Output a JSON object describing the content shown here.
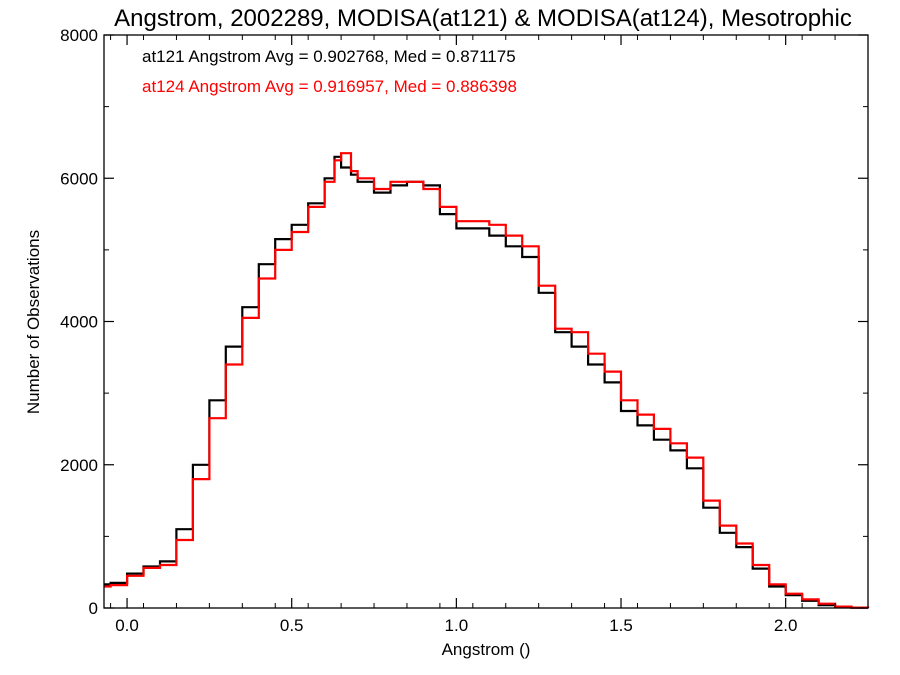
{
  "chart_data": {
    "type": "line",
    "title": "Angstrom, 2002289, MODISA(at121) & MODISA(at124), Mesotrophic",
    "xlabel": "Angstrom ()",
    "ylabel": "Number of Observations",
    "xlim": [
      -0.07,
      2.25
    ],
    "ylim": [
      0,
      8000
    ],
    "x_ticks": [
      0.0,
      0.5,
      1.0,
      1.5,
      2.0
    ],
    "x_tick_labels": [
      "0.0",
      "0.5",
      "1.0",
      "1.5",
      "2.0"
    ],
    "y_ticks": [
      0,
      2000,
      4000,
      6000,
      8000
    ],
    "y_tick_labels": [
      "0",
      "2000",
      "4000",
      "6000",
      "8000"
    ],
    "grid": false,
    "legend": "top-left",
    "series": [
      {
        "name": "at121 Angstrom Avg = 0.902768, Med = 0.871175",
        "color": "#000000",
        "x": [
          -0.07,
          -0.05,
          0.0,
          0.05,
          0.1,
          0.15,
          0.2,
          0.25,
          0.3,
          0.35,
          0.4,
          0.45,
          0.5,
          0.55,
          0.6,
          0.63,
          0.65,
          0.68,
          0.7,
          0.75,
          0.8,
          0.85,
          0.9,
          0.95,
          1.0,
          1.05,
          1.1,
          1.15,
          1.2,
          1.25,
          1.3,
          1.35,
          1.4,
          1.45,
          1.5,
          1.55,
          1.6,
          1.65,
          1.7,
          1.75,
          1.8,
          1.85,
          1.9,
          1.95,
          2.0,
          2.05,
          2.1,
          2.15,
          2.2,
          2.25
        ],
        "values": [
          330,
          350,
          480,
          580,
          650,
          1100,
          2000,
          2900,
          3650,
          4200,
          4800,
          5150,
          5350,
          5650,
          6000,
          6300,
          6150,
          6050,
          5950,
          5800,
          5900,
          5950,
          5900,
          5500,
          5300,
          5300,
          5200,
          5050,
          4900,
          4400,
          3850,
          3650,
          3400,
          3150,
          2750,
          2550,
          2350,
          2200,
          1950,
          1400,
          1050,
          850,
          550,
          300,
          180,
          100,
          40,
          10,
          5,
          0
        ]
      },
      {
        "name": "at124 Angstrom Avg = 0.916957, Med = 0.886398",
        "color": "#ff0000",
        "x": [
          -0.07,
          -0.05,
          0.0,
          0.05,
          0.1,
          0.15,
          0.2,
          0.25,
          0.3,
          0.35,
          0.4,
          0.45,
          0.5,
          0.55,
          0.6,
          0.63,
          0.65,
          0.68,
          0.7,
          0.75,
          0.8,
          0.85,
          0.9,
          0.95,
          1.0,
          1.05,
          1.1,
          1.15,
          1.2,
          1.25,
          1.3,
          1.35,
          1.4,
          1.45,
          1.5,
          1.55,
          1.6,
          1.65,
          1.7,
          1.75,
          1.8,
          1.85,
          1.9,
          1.95,
          2.0,
          2.05,
          2.1,
          2.15,
          2.2,
          2.25
        ],
        "values": [
          300,
          320,
          450,
          560,
          600,
          950,
          1800,
          2650,
          3400,
          4050,
          4600,
          5000,
          5250,
          5600,
          5950,
          6250,
          6350,
          6100,
          6000,
          5850,
          5950,
          5950,
          5850,
          5600,
          5400,
          5400,
          5350,
          5200,
          5050,
          4500,
          3900,
          3850,
          3550,
          3300,
          2900,
          2700,
          2500,
          2300,
          2100,
          1500,
          1150,
          900,
          600,
          330,
          200,
          120,
          60,
          20,
          5,
          0
        ]
      }
    ]
  }
}
